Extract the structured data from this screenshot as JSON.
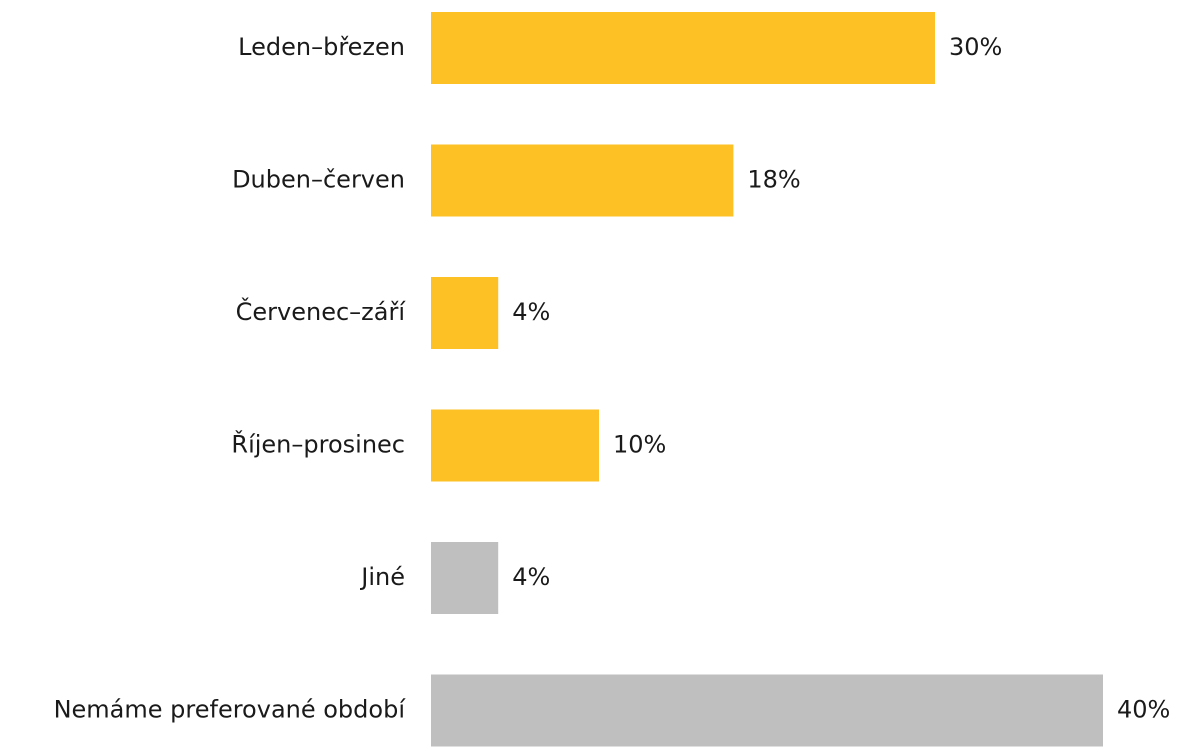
{
  "chart_data": {
    "type": "bar",
    "orientation": "horizontal",
    "categories": [
      "Leden–březen",
      "Duben–červen",
      "Červenec–září",
      "Říjen–prosinec",
      "Jiné",
      "Nemáme preferované období"
    ],
    "values": [
      30,
      18,
      4,
      10,
      4,
      40
    ],
    "value_labels": [
      "30%",
      "18%",
      "4%",
      "10%",
      "4%",
      "40%"
    ],
    "colors": [
      "#fdc125",
      "#fdc125",
      "#fdc125",
      "#fdc125",
      "#bfbfbf",
      "#bfbfbf"
    ]
  }
}
